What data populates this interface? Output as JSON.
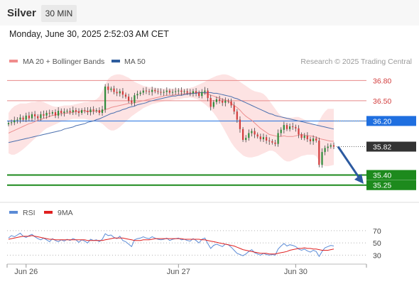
{
  "header": {
    "symbol": "Silver",
    "timeframe": "30 MIN"
  },
  "datetime": "Monday, June 30, 2025 2:52:03 AM CET",
  "legend": [
    {
      "label": "MA 20 + Bollinger Bands",
      "color": "#f08c8c"
    },
    {
      "label": "MA 50",
      "color": "#2e5d9e"
    }
  ],
  "credit": "Research © 2025 Trading Central",
  "chart_data": {
    "type": "line",
    "subtype": "candlestick",
    "x_ticks": [
      "Jun 26",
      "Jun 27",
      "Jun 30"
    ],
    "ylim": [
      35.1,
      36.94
    ],
    "levels": [
      {
        "value": 36.8,
        "label": "36.80",
        "kind": "resistance",
        "color": "#e88a8a"
      },
      {
        "value": 36.5,
        "label": "36.50",
        "kind": "resistance",
        "color": "#e88a8a"
      },
      {
        "value": 36.2,
        "label": "36.20",
        "kind": "pivot",
        "color": "#1f6fe0"
      },
      {
        "value": 35.82,
        "label": "35.82",
        "kind": "last",
        "color": "#333333"
      },
      {
        "value": 35.4,
        "label": "35.40",
        "kind": "support",
        "color": "#1d8a1d"
      },
      {
        "value": 35.25,
        "label": "35.25",
        "kind": "support",
        "color": "#1d8a1d"
      }
    ],
    "forecast": {
      "from": 35.82,
      "to": 35.27,
      "direction": "down"
    },
    "price": [
      36.17,
      36.18,
      36.21,
      36.22,
      36.25,
      36.22,
      36.28,
      36.24,
      36.3,
      36.27,
      36.24,
      36.3,
      36.28,
      36.32,
      36.31,
      36.33,
      36.28,
      36.35,
      36.32,
      36.34,
      36.35,
      36.33,
      36.36,
      36.34,
      36.32,
      36.36,
      36.35,
      36.33,
      36.37,
      36.35,
      36.36,
      36.32,
      36.37,
      36.71,
      36.66,
      36.68,
      36.63,
      36.61,
      36.64,
      36.59,
      36.56,
      36.5,
      36.47,
      36.58,
      36.6,
      36.62,
      36.65,
      36.64,
      36.63,
      36.66,
      36.64,
      36.63,
      36.62,
      36.63,
      36.65,
      36.62,
      36.63,
      36.64,
      36.65,
      36.63,
      36.64,
      36.62,
      36.61,
      36.64,
      36.62,
      36.57,
      36.63,
      36.65,
      36.54,
      36.41,
      36.48,
      36.52,
      36.5,
      36.47,
      36.5,
      36.49,
      36.43,
      36.34,
      36.22,
      36.08,
      35.92,
      35.95,
      36.02,
      36.05,
      36.0,
      35.97,
      35.93,
      35.96,
      35.91,
      35.9,
      35.88,
      35.86,
      36.02,
      36.07,
      36.14,
      36.08,
      36.12,
      36.11,
      36.09,
      36.0,
      35.95,
      35.98,
      35.93,
      35.9,
      35.94,
      35.91,
      35.55,
      35.74,
      35.8,
      35.82,
      35.84,
      35.82
    ],
    "ma20": [
      36.02,
      36.04,
      36.06,
      36.08,
      36.1,
      36.12,
      36.14,
      36.16,
      36.17,
      36.19,
      36.21,
      36.22,
      36.24,
      36.25,
      36.27,
      36.28,
      36.29,
      36.3,
      36.31,
      36.31,
      36.32,
      36.32,
      36.33,
      36.34,
      36.34,
      36.35,
      36.35,
      36.34,
      36.35,
      36.34,
      36.35,
      36.34,
      36.35,
      36.37,
      36.38,
      36.4,
      36.41,
      36.42,
      36.43,
      36.44,
      36.45,
      36.46,
      36.46,
      36.47,
      36.48,
      36.49,
      36.5,
      36.51,
      36.52,
      36.53,
      36.54,
      36.55,
      36.56,
      36.57,
      36.58,
      36.58,
      36.58,
      36.59,
      36.59,
      36.6,
      36.6,
      36.61,
      36.61,
      36.61,
      36.62,
      36.62,
      36.62,
      36.61,
      36.6,
      36.58,
      36.57,
      36.55,
      36.54,
      36.52,
      36.51,
      36.49,
      36.46,
      36.43,
      36.4,
      36.36,
      36.31,
      36.27,
      36.24,
      36.21,
      36.17,
      36.13,
      36.09,
      36.06,
      36.03,
      36.0,
      35.99,
      35.98,
      35.97,
      35.97,
      35.98,
      35.97,
      35.97,
      35.97,
      35.98,
      35.99,
      36.0,
      35.99,
      35.98,
      35.98,
      35.97,
      35.96,
      35.94,
      35.93,
      35.92,
      35.91,
      35.9,
      35.9
    ],
    "ma50": [
      35.88,
      35.89,
      35.9,
      35.91,
      35.92,
      35.93,
      35.94,
      35.95,
      35.96,
      35.97,
      35.98,
      35.99,
      36.0,
      36.01,
      36.02,
      36.03,
      36.04,
      36.05,
      36.06,
      36.08,
      36.09,
      36.1,
      36.11,
      36.13,
      36.14,
      36.15,
      36.16,
      36.18,
      36.19,
      36.2,
      36.22,
      36.23,
      36.25,
      36.27,
      36.29,
      36.31,
      36.32,
      36.34,
      36.35,
      36.37,
      36.38,
      36.4,
      36.41,
      36.42,
      36.44,
      36.45,
      36.46,
      36.47,
      36.49,
      36.5,
      36.51,
      36.52,
      36.53,
      36.54,
      36.55,
      36.56,
      36.57,
      36.57,
      36.58,
      36.58,
      36.59,
      36.6,
      36.6,
      36.61,
      36.61,
      36.62,
      36.62,
      36.62,
      36.62,
      36.62,
      36.61,
      36.61,
      36.6,
      36.59,
      36.58,
      36.57,
      36.56,
      36.54,
      36.53,
      36.51,
      36.49,
      36.47,
      36.45,
      36.43,
      36.41,
      36.39,
      36.37,
      36.35,
      36.33,
      36.31,
      36.3,
      36.28,
      36.27,
      36.26,
      36.25,
      36.24,
      36.23,
      36.22,
      36.21,
      36.2,
      36.19,
      36.18,
      36.17,
      36.16,
      36.15,
      36.14,
      36.13,
      36.12,
      36.11,
      36.1,
      36.09,
      36.08
    ],
    "bb_upper": [
      36.32,
      36.38,
      36.42,
      36.44,
      36.46,
      36.46,
      36.46,
      36.47,
      36.48,
      36.48,
      36.49,
      36.49,
      36.48,
      36.46,
      36.44,
      36.42,
      36.41,
      36.41,
      36.42,
      36.43,
      36.43,
      36.43,
      36.44,
      36.45,
      36.46,
      36.47,
      36.48,
      36.48,
      36.49,
      36.5,
      36.52,
      36.56,
      36.64,
      36.74,
      36.82,
      36.86,
      36.88,
      36.89,
      36.89,
      36.88,
      36.86,
      36.84,
      36.81,
      36.78,
      36.76,
      36.74,
      36.72,
      36.71,
      36.7,
      36.7,
      36.69,
      36.69,
      36.68,
      36.68,
      36.68,
      36.68,
      36.68,
      36.68,
      36.68,
      36.68,
      36.68,
      36.68,
      36.69,
      36.7,
      36.72,
      36.74,
      36.76,
      36.78,
      36.81,
      36.83,
      36.85,
      36.87,
      36.88,
      36.89,
      36.89,
      36.88,
      36.86,
      36.84,
      36.81,
      36.78,
      36.75,
      36.72,
      36.69,
      36.66,
      36.64,
      36.63,
      36.62,
      36.6,
      36.56,
      36.5,
      36.44,
      36.38,
      36.32,
      36.28,
      36.26,
      36.25,
      36.25,
      36.25,
      36.26,
      36.26,
      36.24,
      36.22,
      36.2,
      36.18,
      36.15,
      36.12,
      36.2,
      36.28,
      36.34,
      36.38,
      36.38,
      36.38
    ],
    "bb_lower": [
      35.72,
      35.7,
      35.7,
      35.72,
      35.75,
      35.78,
      35.82,
      35.86,
      35.9,
      35.94,
      35.98,
      36.02,
      36.06,
      36.09,
      36.11,
      36.13,
      36.15,
      36.17,
      36.19,
      36.2,
      36.21,
      36.22,
      36.23,
      36.23,
      36.23,
      36.23,
      36.23,
      36.22,
      36.21,
      36.2,
      36.19,
      36.18,
      36.16,
      36.12,
      36.08,
      36.06,
      36.06,
      36.08,
      36.11,
      36.15,
      36.19,
      36.23,
      36.27,
      36.3,
      36.33,
      36.36,
      36.39,
      36.41,
      36.43,
      36.45,
      36.46,
      36.47,
      36.48,
      36.49,
      36.5,
      36.5,
      36.51,
      36.52,
      36.52,
      36.53,
      36.54,
      36.54,
      36.55,
      36.54,
      36.53,
      36.51,
      36.48,
      36.45,
      36.41,
      36.37,
      36.32,
      36.26,
      36.19,
      36.12,
      36.04,
      35.96,
      35.88,
      35.82,
      35.77,
      35.73,
      35.69,
      35.67,
      35.66,
      35.66,
      35.67,
      35.68,
      35.7,
      35.72,
      35.74,
      35.76,
      35.76,
      35.74,
      35.7,
      35.66,
      35.62,
      35.6,
      35.6,
      35.62,
      35.64,
      35.66,
      35.68,
      35.69,
      35.7,
      35.7,
      35.7,
      35.68,
      35.6,
      35.55,
      35.53,
      35.53,
      35.54,
      35.55
    ],
    "rsi": {
      "name": "RSI",
      "signal_name": "9MA",
      "ylim": [
        20,
        85
      ],
      "ticks": [
        70,
        50,
        30
      ],
      "values": [
        58,
        62,
        60,
        63,
        66,
        61,
        59,
        62,
        64,
        60,
        57,
        55,
        58,
        55,
        52,
        57,
        54,
        52,
        55,
        53,
        56,
        54,
        57,
        55,
        51,
        55,
        53,
        50,
        56,
        54,
        55,
        52,
        56,
        65,
        62,
        63,
        59,
        57,
        61,
        54,
        52,
        48,
        44,
        55,
        57,
        58,
        60,
        58,
        57,
        60,
        58,
        56,
        55,
        56,
        58,
        54,
        56,
        57,
        58,
        55,
        56,
        54,
        53,
        57,
        54,
        50,
        56,
        58,
        49,
        41,
        46,
        48,
        46,
        44,
        48,
        47,
        43,
        38,
        33,
        31,
        29,
        32,
        36,
        39,
        34,
        32,
        30,
        33,
        31,
        30,
        31,
        30,
        40,
        45,
        49,
        45,
        47,
        46,
        44,
        40,
        38,
        40,
        37,
        35,
        38,
        36,
        28,
        36,
        42,
        44,
        46,
        45
      ],
      "signal": [
        56,
        57,
        58,
        59,
        60,
        61,
        61,
        61,
        62,
        61,
        60,
        59,
        58,
        57,
        56,
        56,
        55,
        55,
        55,
        55,
        55,
        55,
        55,
        55,
        55,
        55,
        55,
        54,
        54,
        54,
        54,
        54,
        54,
        55,
        56,
        57,
        58,
        58,
        58,
        58,
        57,
        56,
        55,
        54,
        54,
        54,
        55,
        55,
        55,
        56,
        57,
        57,
        57,
        57,
        57,
        57,
        57,
        57,
        57,
        57,
        56,
        56,
        56,
        56,
        56,
        56,
        55,
        55,
        54,
        53,
        52,
        51,
        50,
        49,
        48,
        47,
        46,
        45,
        43,
        41,
        39,
        38,
        37,
        36,
        35,
        34,
        33,
        33,
        33,
        32,
        32,
        32,
        33,
        34,
        35,
        36,
        38,
        39,
        40,
        41,
        41,
        42,
        41,
        41,
        40,
        40,
        39,
        38,
        38,
        38,
        39,
        40
      ]
    }
  }
}
